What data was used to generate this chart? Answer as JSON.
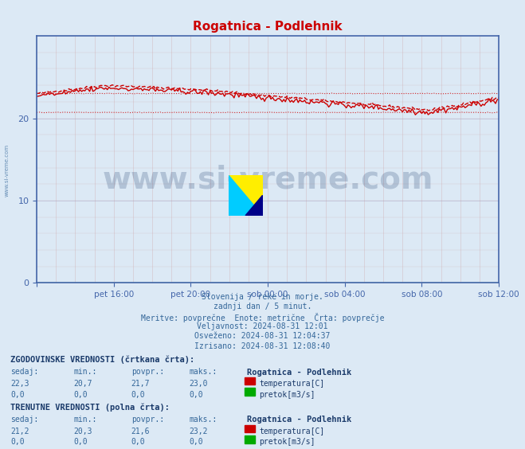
{
  "title": "Rogatnica - Podlehnik",
  "title_color": "#cc0000",
  "bg_color": "#dce9f5",
  "plot_bg_color": "#dce9f5",
  "grid_color_major": "#aaaacc",
  "grid_color_minor": "#ddddee",
  "xlabel_ticks": [
    "",
    "pet 16:00",
    "pet 20:00",
    "sob 00:00",
    "sob 04:00",
    "sob 08:00",
    "sob 12:00"
  ],
  "ylabel_ticks": [
    0,
    10,
    20
  ],
  "ylim": [
    0,
    30
  ],
  "xlim": [
    0,
    288
  ],
  "tick_positions": [
    0,
    48,
    96,
    144,
    192,
    240,
    288
  ],
  "axis_color": "#4466aa",
  "tick_color": "#4466aa",
  "watermark_text": "www.si-vreme.com",
  "watermark_color": "#1a3a6a",
  "watermark_alpha": 0.25,
  "info_lines": [
    "Slovenija / reke in morje.",
    "zadnji dan / 5 minut.",
    "Meritve: povprečne  Enote: metrične  Črta: povprečje",
    "Veljavnost: 2024-08-31 12:01",
    "Osveženo: 2024-08-31 12:04:37",
    "Izrisano: 2024-08-31 12:08:40"
  ],
  "hist_label": "ZGODOVINSKE VREDNOSTI (črtkana črta):",
  "curr_label": "TRENUTNE VREDNOSTI (polna črta):",
  "table_headers": [
    "sedaj:",
    "min.:",
    "povpr.:",
    "maks.:"
  ],
  "hist_temp": [
    22.3,
    20.7,
    21.7,
    23.0
  ],
  "hist_flow": [
    0.0,
    0.0,
    0.0,
    0.0
  ],
  "curr_temp": [
    21.2,
    20.3,
    21.6,
    23.2
  ],
  "curr_flow": [
    0.0,
    0.0,
    0.0,
    0.0
  ],
  "station_name": "Rogatnica - Podlehnik",
  "temp_color_hist": "#cc0000",
  "temp_color_curr": "#cc0000",
  "flow_color_hist": "#00aa00",
  "flow_color_curr": "#00aa00",
  "text_color": "#336699",
  "text_color_dark": "#1a3a6a"
}
